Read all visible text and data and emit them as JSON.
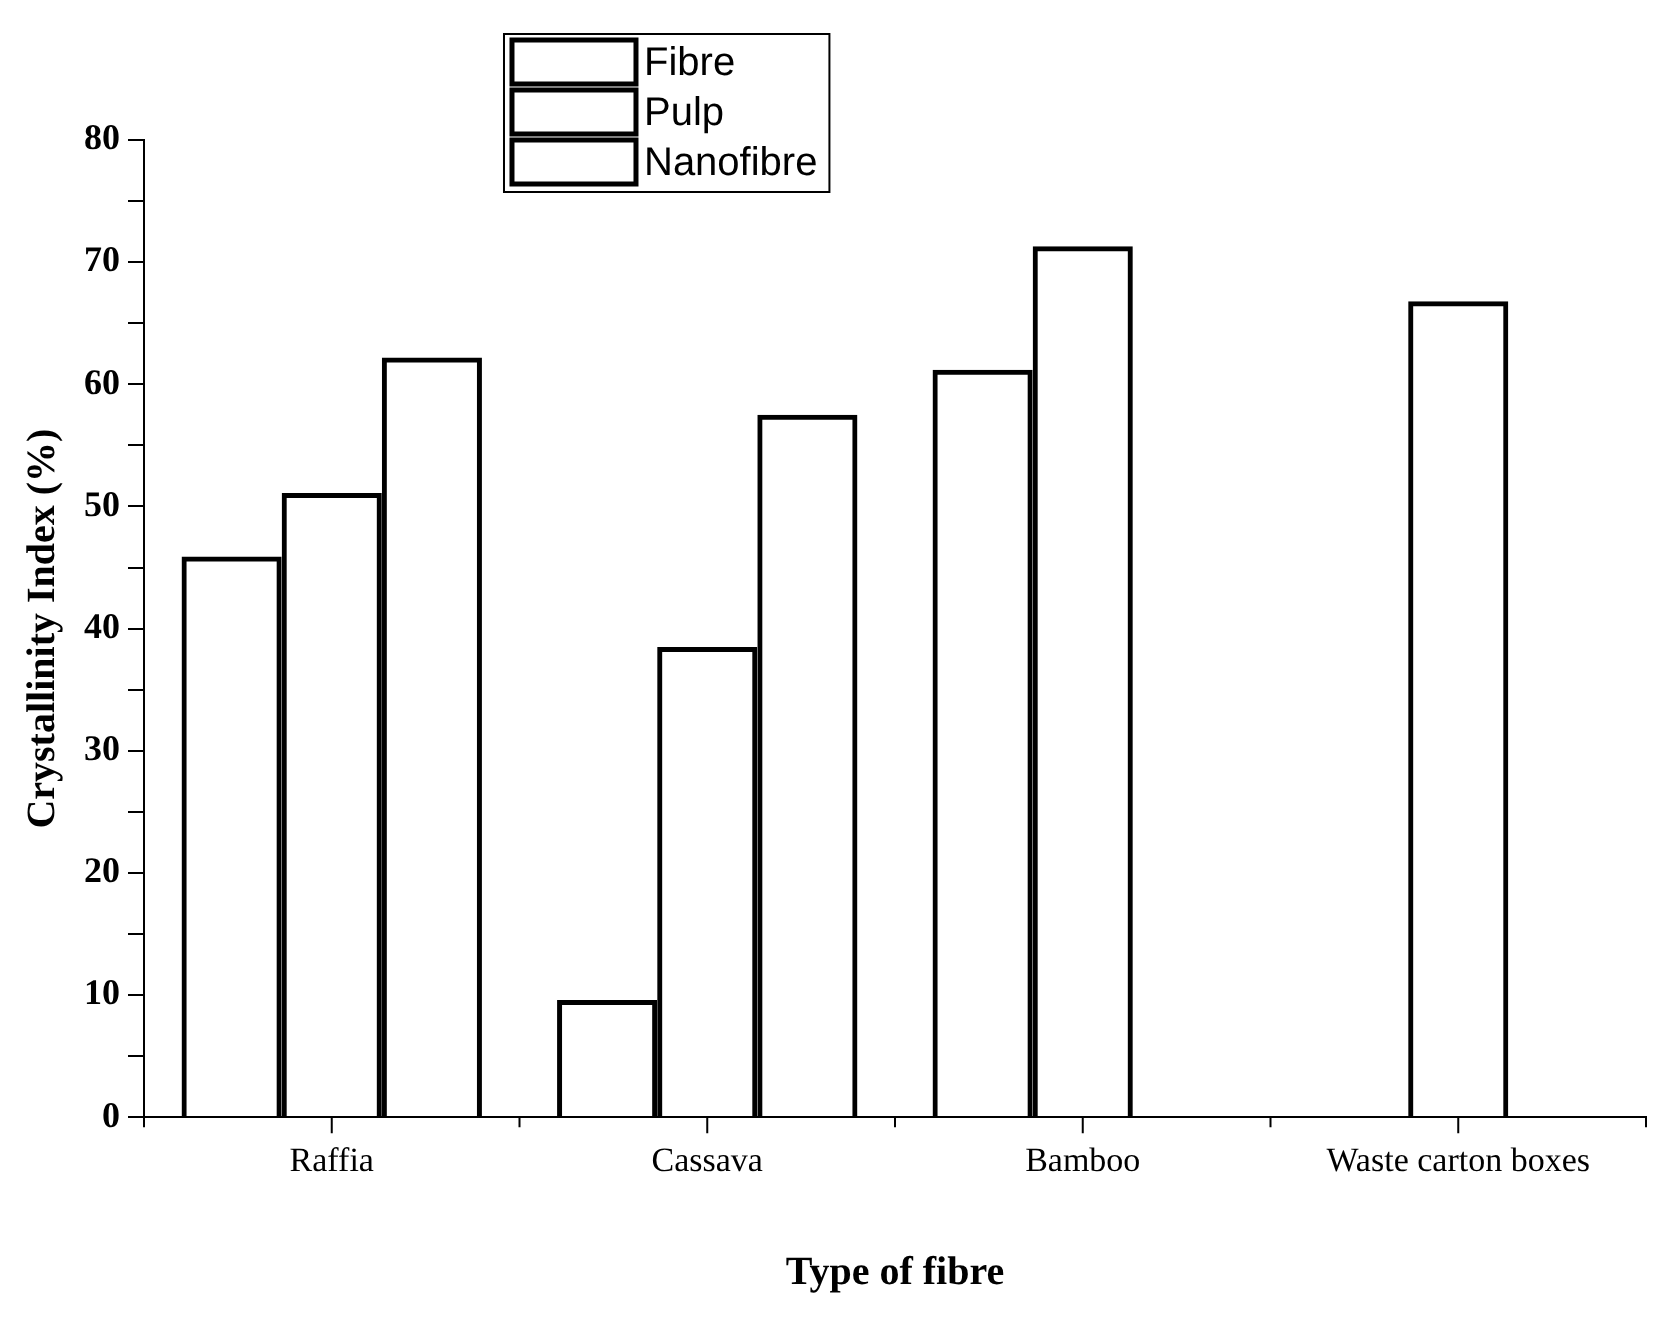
{
  "chart_data": {
    "type": "bar",
    "xlabel": "Type of fibre",
    "ylabel": "Crystallinity Index (%)",
    "categories": [
      "Raffia",
      "Cassava",
      "Bamboo",
      "Waste carton boxes"
    ],
    "series": [
      {
        "name": "Fibre",
        "color": "#000000",
        "values": [
          45.9,
          9.6,
          61.2,
          null
        ]
      },
      {
        "name": "Pulp",
        "color": "#000000",
        "values": [
          51.1,
          38.5,
          71.3,
          66.8
        ]
      },
      {
        "name": "Nanofibre",
        "color": "#000000",
        "values": [
          62.2,
          57.5,
          null,
          null
        ]
      }
    ],
    "ylim": [
      0,
      80
    ],
    "yticks": [
      0,
      {
        "value": 5,
        "label": null
      },
      10,
      {
        "value": 15,
        "label": null
      },
      20,
      {
        "value": 25,
        "label": null
      },
      30,
      {
        "value": 35,
        "label": null
      },
      40,
      {
        "value": 45,
        "label": null
      },
      50,
      {
        "value": 55,
        "label": null
      },
      60,
      {
        "value": 65,
        "label": null
      },
      70,
      {
        "value": 75,
        "label": null
      },
      80
    ],
    "grid": false,
    "legend": "top"
  }
}
